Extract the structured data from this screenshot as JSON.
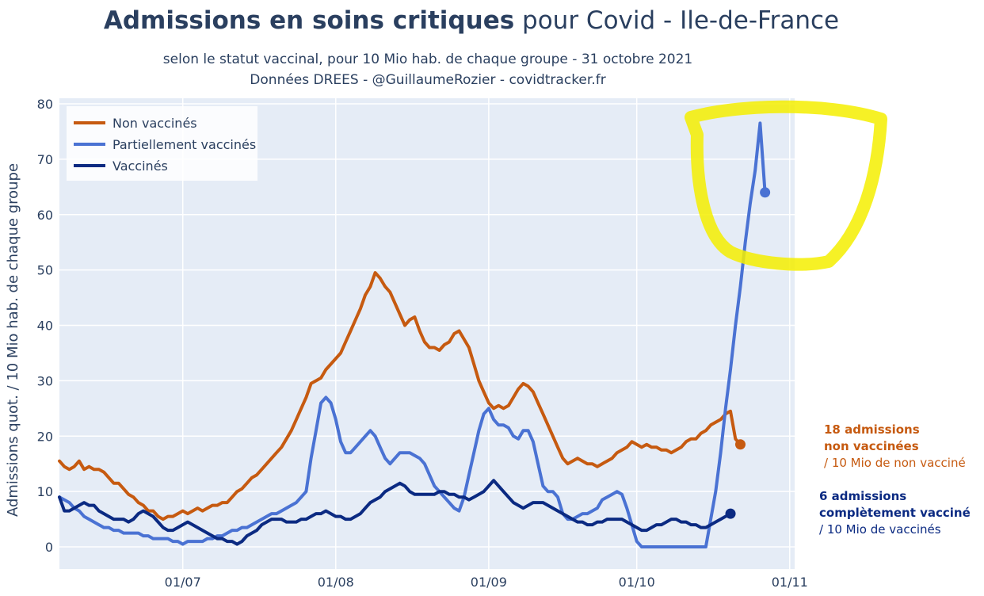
{
  "title": {
    "bold": "Admissions en soins critiques",
    "rest": "pour Covid - Ile-de-France"
  },
  "subtitle": {
    "line1": "selon le statut vaccinal, pour 10 Mio hab. de chaque groupe - 31 octobre 2021",
    "line2": "Données DREES - @GuillaumeRozier - covidtracker.fr"
  },
  "chart_data": {
    "type": "line",
    "ylabel": "Admissions quot. / 10 Mio hab. de chaque groupe",
    "xlabel": "",
    "ylim": [
      -4,
      81
    ],
    "yticks": [
      "0",
      "10",
      "20",
      "30",
      "40",
      "50",
      "60",
      "70",
      "80"
    ],
    "x_days_range": [
      0,
      149
    ],
    "xticks": [
      {
        "label": "01/07",
        "day": 25
      },
      {
        "label": "01/08",
        "day": 56
      },
      {
        "label": "01/09",
        "day": 87
      },
      {
        "label": "01/10",
        "day": 117
      },
      {
        "label": "01/11",
        "day": 148
      }
    ],
    "grid": true,
    "legend_position": "top-left",
    "series": [
      {
        "name": "Non vaccinés",
        "color": "#c65a10",
        "values": [
          15.5,
          14.5,
          14,
          14.5,
          15.5,
          14,
          14.5,
          14,
          14,
          13.5,
          12.5,
          11.5,
          11.5,
          10.5,
          9.5,
          9,
          8,
          7.5,
          6.5,
          6.5,
          5.5,
          5,
          5.5,
          5.5,
          6,
          6.5,
          6,
          6.5,
          7,
          6.5,
          7,
          7.5,
          7.5,
          8,
          8,
          9,
          10,
          10.5,
          11.5,
          12.5,
          13,
          14,
          15,
          16,
          17,
          18,
          19.5,
          21,
          23,
          25,
          27,
          29.5,
          30,
          30.5,
          32,
          33,
          34,
          35,
          37,
          39,
          41,
          43,
          45.5,
          47,
          49.5,
          48.5,
          47,
          46,
          44,
          42,
          40,
          41,
          41.5,
          39,
          37,
          36,
          36,
          35.5,
          36.5,
          37,
          38.5,
          39,
          37.5,
          36,
          33,
          30,
          28,
          26,
          25,
          25.5,
          25,
          25.5,
          27,
          28.5,
          29.5,
          29,
          28,
          26,
          24,
          22,
          20,
          18,
          16,
          15,
          15.5,
          16,
          15.5,
          15,
          15,
          14.5,
          15,
          15.5,
          16,
          17,
          17.5,
          18,
          19,
          18.5,
          18,
          18.5,
          18,
          18,
          17.5,
          17.5,
          17,
          17.5,
          18,
          19,
          19.5,
          19.5,
          20.5,
          21,
          22,
          22.5,
          23,
          24,
          24.5,
          19.5,
          18.5
        ],
        "end_marker": 18.5
      },
      {
        "name": "Partiellement vaccinés",
        "color": "#4a72d3",
        "values": [
          9,
          8.5,
          8,
          7,
          6.5,
          5.5,
          5,
          4.5,
          4,
          3.5,
          3.5,
          3,
          3,
          2.5,
          2.5,
          2.5,
          2.5,
          2,
          2,
          1.5,
          1.5,
          1.5,
          1.5,
          1,
          1,
          0.5,
          1,
          1,
          1,
          1,
          1.5,
          1.5,
          2,
          2,
          2.5,
          3,
          3,
          3.5,
          3.5,
          4,
          4.5,
          5,
          5.5,
          6,
          6,
          6.5,
          7,
          7.5,
          8,
          9,
          10,
          16,
          21,
          26,
          27,
          26,
          23,
          19,
          17,
          17,
          18,
          19,
          20,
          21,
          20,
          18,
          16,
          15,
          16,
          17,
          17,
          17,
          16.5,
          16,
          15,
          13,
          11,
          10,
          9,
          8,
          7,
          6.5,
          9,
          13,
          17,
          21,
          24,
          25,
          23,
          22,
          22,
          21.5,
          20,
          19.5,
          21,
          21,
          19,
          15,
          11,
          10,
          10,
          9,
          6,
          5,
          5,
          5.5,
          6,
          6,
          6.5,
          7,
          8.5,
          9,
          9.5,
          10,
          9.5,
          7,
          4,
          1,
          0,
          0,
          0,
          0,
          0,
          0,
          0,
          0,
          0,
          0,
          0,
          0,
          0,
          0,
          5,
          10,
          17,
          25,
          32,
          40,
          47,
          55,
          62,
          68,
          76.5,
          64
        ],
        "end_marker": 64
      },
      {
        "name": "Vaccinés",
        "color": "#0b2a82",
        "values": [
          9,
          6.5,
          6.5,
          7,
          7.5,
          8,
          7.5,
          7.5,
          6.5,
          6,
          5.5,
          5,
          5,
          5,
          4.5,
          5,
          6,
          6.5,
          6,
          5.5,
          4.5,
          3.5,
          3,
          3,
          3.5,
          4,
          4.5,
          4,
          3.5,
          3,
          2.5,
          2,
          1.5,
          1.5,
          1,
          1,
          0.5,
          1,
          2,
          2.5,
          3,
          4,
          4.5,
          5,
          5,
          5,
          4.5,
          4.5,
          4.5,
          5,
          5,
          5.5,
          6,
          6,
          6.5,
          6,
          5.5,
          5.5,
          5,
          5,
          5.5,
          6,
          7,
          8,
          8.5,
          9,
          10,
          10.5,
          11,
          11.5,
          11,
          10,
          9.5,
          9.5,
          9.5,
          9.5,
          9.5,
          10,
          10,
          9.5,
          9.5,
          9,
          9,
          8.5,
          9,
          9.5,
          10,
          11,
          12,
          11,
          10,
          9,
          8,
          7.5,
          7,
          7.5,
          8,
          8,
          8,
          7.5,
          7,
          6.5,
          6,
          5.5,
          5,
          4.5,
          4.5,
          4,
          4,
          4.5,
          4.5,
          5,
          5,
          5,
          5,
          4.5,
          4,
          3.5,
          3,
          3,
          3.5,
          4,
          4,
          4.5,
          5,
          5,
          4.5,
          4.5,
          4,
          4,
          3.5,
          3.5,
          4,
          4.5,
          5,
          5.5,
          6
        ],
        "end_marker": 6
      }
    ],
    "highlight": {
      "color": "#f4ef00"
    }
  },
  "annotations": {
    "unvaccinated": {
      "line1": "18 admissions",
      "line2": "non vaccinées",
      "line3": "/ 10 Mio de non vacciné",
      "color": "#c65a10"
    },
    "vaccinated": {
      "line1": "6 admissions",
      "line2": "complètement vacciné",
      "line3": "/ 10 Mio de vaccinés",
      "color": "#0b2a82"
    }
  }
}
